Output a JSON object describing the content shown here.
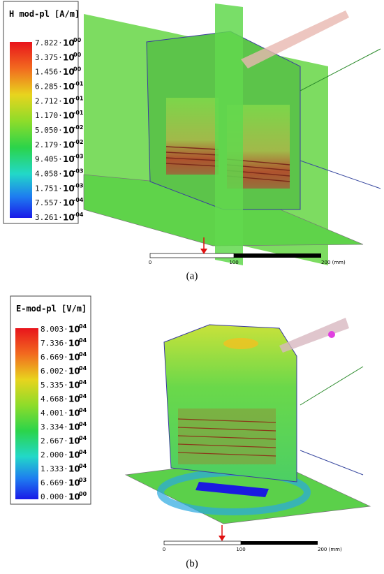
{
  "panels": [
    {
      "legend": {
        "title": "H mod-pl [A/m]",
        "base": "10",
        "labels": [
          {
            "mantissa": "7.822·",
            "exponent": "00"
          },
          {
            "mantissa": "3.375·",
            "exponent": "00"
          },
          {
            "mantissa": "1.456·",
            "exponent": "00"
          },
          {
            "mantissa": "6.285·",
            "exponent": "-01"
          },
          {
            "mantissa": "2.712·",
            "exponent": "-01"
          },
          {
            "mantissa": "1.170·",
            "exponent": "-01"
          },
          {
            "mantissa": "5.050·",
            "exponent": "-02"
          },
          {
            "mantissa": "2.179·",
            "exponent": "-02"
          },
          {
            "mantissa": "9.405·",
            "exponent": "-03"
          },
          {
            "mantissa": "4.058·",
            "exponent": "-03"
          },
          {
            "mantissa": "1.751·",
            "exponent": "-03"
          },
          {
            "mantissa": "7.557·",
            "exponent": "-04"
          },
          {
            "mantissa": "3.261·",
            "exponent": "-04"
          }
        ]
      },
      "scale": [
        "0",
        "100",
        "200 (mm)"
      ],
      "caption": "(a)"
    },
    {
      "legend": {
        "title": "E-mod-pl [V/m]",
        "base": "10",
        "labels": [
          {
            "mantissa": "8.003·",
            "exponent": "04"
          },
          {
            "mantissa": "7.336·",
            "exponent": "04"
          },
          {
            "mantissa": "6.669·",
            "exponent": "04"
          },
          {
            "mantissa": "6.002·",
            "exponent": "04"
          },
          {
            "mantissa": "5.335·",
            "exponent": "04"
          },
          {
            "mantissa": "4.668·",
            "exponent": "04"
          },
          {
            "mantissa": "4.001·",
            "exponent": "04"
          },
          {
            "mantissa": "3.334·",
            "exponent": "04"
          },
          {
            "mantissa": "2.667·",
            "exponent": "04"
          },
          {
            "mantissa": "2.000·",
            "exponent": "04"
          },
          {
            "mantissa": "1.333·",
            "exponent": "04"
          },
          {
            "mantissa": "6.669·",
            "exponent": "03"
          },
          {
            "mantissa": "0.000·",
            "exponent": "00"
          }
        ]
      },
      "scale": [
        "0",
        "100",
        "200 (mm)"
      ],
      "caption": "(b)"
    }
  ]
}
